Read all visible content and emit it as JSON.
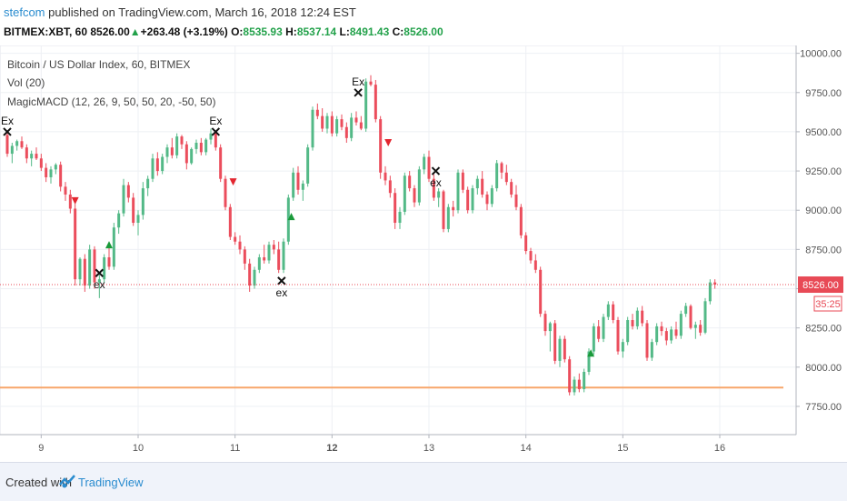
{
  "header": {
    "author": "stefcom",
    "published_text": " published on TradingView.com, March 16, 2018 12:24 EST",
    "symbol": "BITMEX:XBT, 60",
    "last": "8526.00",
    "change": "+263.48 (+3.19%)",
    "o_label": "O:",
    "o_value": "8535.93",
    "h_label": "H:",
    "h_value": "8537.14",
    "l_label": "L:",
    "l_value": "8491.43",
    "c_label": "C:",
    "c_value": "8526.00"
  },
  "legend": {
    "title": "Bitcoin / US Dollar Index, 60, BITMEX",
    "vol": "Vol (20)",
    "macd": "MagicMACD (12, 26, 9, 50, 50, 20, -50, 50)"
  },
  "footer": {
    "created": "Created with",
    "brand": "TradingView"
  },
  "colors": {
    "up": "#53b987",
    "down": "#eb4d5c",
    "support": "#f7a66a",
    "last_line": "#e84a56"
  },
  "chart_data": {
    "type": "candlestick",
    "x_ticks": [
      "9",
      "10",
      "11",
      "12",
      "13",
      "14",
      "15",
      "16"
    ],
    "x_tick_pos": [
      0.5,
      10.5,
      20.5,
      30.5,
      40.5,
      50.5,
      60.5,
      70.5
    ],
    "y_ticks": [
      "7750.00",
      "8000.00",
      "8250.00",
      "8500.00",
      "8750.00",
      "9000.00",
      "9250.00",
      "9500.00",
      "9750.00",
      "10000.00"
    ],
    "y_tick_vals": [
      7750,
      8000,
      8250,
      8500,
      8750,
      9000,
      9250,
      9500,
      9750,
      10000
    ],
    "ylim": [
      7570,
      10050
    ],
    "xlim": [
      -3,
      78
    ],
    "last_price": 8526,
    "last_price_label": "8526.00",
    "countdown": "35:25",
    "support_level": 7870,
    "candles": [
      [
        -3,
        9480,
        9500,
        9340,
        9360
      ],
      [
        -2.5,
        9360,
        9430,
        9300,
        9410
      ],
      [
        -2,
        9410,
        9450,
        9380,
        9440
      ],
      [
        -1.5,
        9440,
        9470,
        9390,
        9400
      ],
      [
        -1,
        9400,
        9420,
        9300,
        9330
      ],
      [
        -0.5,
        9330,
        9380,
        9280,
        9360
      ],
      [
        0,
        9360,
        9400,
        9320,
        9330
      ],
      [
        0.5,
        9330,
        9360,
        9250,
        9270
      ],
      [
        1,
        9270,
        9300,
        9180,
        9210
      ],
      [
        1.5,
        9210,
        9280,
        9170,
        9260
      ],
      [
        2,
        9260,
        9300,
        9230,
        9290
      ],
      [
        2.5,
        9290,
        9310,
        9120,
        9150
      ],
      [
        3,
        9150,
        9180,
        9060,
        9100
      ],
      [
        3.5,
        9100,
        9130,
        8980,
        9010
      ],
      [
        4,
        9010,
        9040,
        8520,
        8560
      ],
      [
        4.5,
        8560,
        8700,
        8520,
        8690
      ],
      [
        5,
        8690,
        8720,
        8480,
        8520
      ],
      [
        5.5,
        8520,
        8780,
        8500,
        8750
      ],
      [
        6,
        8750,
        8770,
        8500,
        8540
      ],
      [
        6.5,
        8540,
        8600,
        8440,
        8560
      ],
      [
        7,
        8560,
        8720,
        8540,
        8700
      ],
      [
        7.5,
        8700,
        8760,
        8620,
        8640
      ],
      [
        8,
        8640,
        8920,
        8620,
        8890
      ],
      [
        8.5,
        8890,
        9000,
        8850,
        8980
      ],
      [
        9,
        8980,
        9200,
        8960,
        9160
      ],
      [
        9.5,
        9160,
        9180,
        9050,
        9080
      ],
      [
        10,
        9080,
        9110,
        8900,
        8920
      ],
      [
        10.5,
        8920,
        9000,
        8840,
        8970
      ],
      [
        11,
        8970,
        9180,
        8940,
        9140
      ],
      [
        11.5,
        9140,
        9220,
        9090,
        9200
      ],
      [
        12,
        9200,
        9360,
        9180,
        9330
      ],
      [
        12.5,
        9330,
        9370,
        9220,
        9250
      ],
      [
        13,
        9250,
        9360,
        9230,
        9340
      ],
      [
        13.5,
        9340,
        9420,
        9300,
        9400
      ],
      [
        14,
        9400,
        9460,
        9330,
        9350
      ],
      [
        14.5,
        9350,
        9490,
        9330,
        9470
      ],
      [
        15,
        9470,
        9480,
        9390,
        9420
      ],
      [
        15.5,
        9420,
        9440,
        9260,
        9300
      ],
      [
        16,
        9300,
        9400,
        9290,
        9390
      ],
      [
        16.5,
        9390,
        9450,
        9360,
        9430
      ],
      [
        17,
        9430,
        9460,
        9350,
        9370
      ],
      [
        17.5,
        9370,
        9460,
        9350,
        9450
      ],
      [
        18,
        9450,
        9520,
        9420,
        9490
      ],
      [
        18.5,
        9490,
        9500,
        9380,
        9400
      ],
      [
        19,
        9400,
        9420,
        9180,
        9200
      ],
      [
        19.5,
        9200,
        9220,
        9000,
        9020
      ],
      [
        20,
        9020,
        9040,
        8810,
        8830
      ],
      [
        20.5,
        8830,
        8860,
        8780,
        8800
      ],
      [
        21,
        8800,
        8840,
        8720,
        8750
      ],
      [
        21.5,
        8750,
        8770,
        8620,
        8660
      ],
      [
        22,
        8660,
        8690,
        8480,
        8520
      ],
      [
        22.5,
        8520,
        8640,
        8500,
        8620
      ],
      [
        23,
        8620,
        8720,
        8600,
        8700
      ],
      [
        23.5,
        8700,
        8780,
        8660,
        8680
      ],
      [
        24,
        8680,
        8800,
        8660,
        8780
      ],
      [
        24.5,
        8780,
        8810,
        8720,
        8750
      ],
      [
        25,
        8750,
        8800,
        8600,
        8620
      ],
      [
        25.5,
        8620,
        8820,
        8600,
        8800
      ],
      [
        26,
        8800,
        9100,
        8780,
        9080
      ],
      [
        26.5,
        9080,
        9270,
        9060,
        9240
      ],
      [
        27,
        9240,
        9280,
        9100,
        9130
      ],
      [
        27.5,
        9130,
        9190,
        9060,
        9170
      ],
      [
        28,
        9170,
        9420,
        9150,
        9400
      ],
      [
        28.5,
        9400,
        9660,
        9380,
        9640
      ],
      [
        29,
        9640,
        9680,
        9580,
        9600
      ],
      [
        29.5,
        9600,
        9650,
        9500,
        9520
      ],
      [
        30,
        9520,
        9620,
        9490,
        9600
      ],
      [
        30.5,
        9600,
        9630,
        9470,
        9490
      ],
      [
        31,
        9490,
        9600,
        9470,
        9580
      ],
      [
        31.5,
        9580,
        9610,
        9510,
        9530
      ],
      [
        32,
        9530,
        9560,
        9430,
        9460
      ],
      [
        32.5,
        9460,
        9620,
        9440,
        9590
      ],
      [
        33,
        9590,
        9630,
        9540,
        9560
      ],
      [
        33.5,
        9560,
        9600,
        9510,
        9520
      ],
      [
        34,
        9520,
        9840,
        9500,
        9820
      ],
      [
        34.5,
        9820,
        9860,
        9790,
        9800
      ],
      [
        35,
        9800,
        9830,
        9560,
        9580
      ],
      [
        35.5,
        9580,
        9600,
        9200,
        9240
      ],
      [
        36,
        9240,
        9280,
        9160,
        9190
      ],
      [
        36.5,
        9190,
        9220,
        9080,
        9110
      ],
      [
        37,
        9110,
        9140,
        8880,
        8920
      ],
      [
        37.5,
        8920,
        9020,
        8880,
        8990
      ],
      [
        38,
        8990,
        9240,
        8970,
        9220
      ],
      [
        38.5,
        9220,
        9250,
        9120,
        9140
      ],
      [
        39,
        9140,
        9160,
        9020,
        9050
      ],
      [
        39.5,
        9050,
        9280,
        9030,
        9260
      ],
      [
        40,
        9260,
        9360,
        9230,
        9340
      ],
      [
        40.5,
        9340,
        9380,
        9180,
        9200
      ],
      [
        41,
        9200,
        9230,
        9060,
        9080
      ],
      [
        41.5,
        9080,
        9140,
        9020,
        9120
      ],
      [
        42,
        9120,
        9130,
        8860,
        8880
      ],
      [
        42.5,
        8880,
        9040,
        8860,
        9020
      ],
      [
        43,
        9020,
        9060,
        8960,
        9000
      ],
      [
        43.5,
        9000,
        9260,
        8980,
        9240
      ],
      [
        44,
        9240,
        9260,
        9110,
        9130
      ],
      [
        44.5,
        9130,
        9150,
        8980,
        9000
      ],
      [
        45,
        9000,
        9160,
        8980,
        9140
      ],
      [
        45.5,
        9140,
        9220,
        9100,
        9200
      ],
      [
        46,
        9200,
        9250,
        9080,
        9100
      ],
      [
        46.5,
        9100,
        9120,
        9000,
        9040
      ],
      [
        47,
        9040,
        9160,
        9020,
        9140
      ],
      [
        47.5,
        9140,
        9320,
        9120,
        9300
      ],
      [
        48,
        9300,
        9310,
        9200,
        9240
      ],
      [
        48.5,
        9240,
        9290,
        9160,
        9180
      ],
      [
        49,
        9180,
        9200,
        9080,
        9100
      ],
      [
        49.5,
        9100,
        9160,
        9000,
        9020
      ],
      [
        50,
        9020,
        9040,
        8820,
        8840
      ],
      [
        50.5,
        8840,
        8860,
        8720,
        8740
      ],
      [
        51,
        8740,
        8760,
        8660,
        8680
      ],
      [
        51.5,
        8680,
        8720,
        8600,
        8620
      ],
      [
        52,
        8620,
        8640,
        8320,
        8340
      ],
      [
        52.5,
        8340,
        8360,
        8200,
        8230
      ],
      [
        53,
        8230,
        8290,
        8100,
        8280
      ],
      [
        53.5,
        8280,
        8300,
        8020,
        8040
      ],
      [
        54,
        8040,
        8200,
        8000,
        8180
      ],
      [
        54.5,
        8180,
        8200,
        8030,
        8050
      ],
      [
        55,
        8050,
        8070,
        7820,
        7840
      ],
      [
        55.5,
        7840,
        7940,
        7820,
        7920
      ],
      [
        56,
        7920,
        7960,
        7840,
        7860
      ],
      [
        56.5,
        7860,
        7990,
        7840,
        7970
      ],
      [
        57,
        7970,
        8120,
        7950,
        8100
      ],
      [
        57.5,
        8100,
        8280,
        8080,
        8260
      ],
      [
        58,
        8260,
        8300,
        8160,
        8180
      ],
      [
        58.5,
        8180,
        8340,
        8160,
        8320
      ],
      [
        59,
        8320,
        8420,
        8300,
        8400
      ],
      [
        59.5,
        8400,
        8420,
        8280,
        8300
      ],
      [
        60,
        8300,
        8320,
        8080,
        8100
      ],
      [
        60.5,
        8100,
        8180,
        8060,
        8160
      ],
      [
        61,
        8160,
        8320,
        8140,
        8300
      ],
      [
        61.5,
        8300,
        8340,
        8240,
        8260
      ],
      [
        62,
        8260,
        8380,
        8240,
        8360
      ],
      [
        62.5,
        8360,
        8390,
        8260,
        8280
      ],
      [
        63,
        8280,
        8300,
        8040,
        8060
      ],
      [
        63.5,
        8060,
        8180,
        8040,
        8160
      ],
      [
        64,
        8160,
        8280,
        8140,
        8260
      ],
      [
        64.5,
        8260,
        8290,
        8200,
        8230
      ],
      [
        65,
        8230,
        8250,
        8140,
        8170
      ],
      [
        65.5,
        8170,
        8260,
        8150,
        8240
      ],
      [
        66,
        8240,
        8290,
        8180,
        8200
      ],
      [
        66.5,
        8200,
        8360,
        8180,
        8340
      ],
      [
        67,
        8340,
        8410,
        8320,
        8390
      ],
      [
        67.5,
        8390,
        8400,
        8240,
        8250
      ],
      [
        68,
        8250,
        8290,
        8180,
        8270
      ],
      [
        68.5,
        8270,
        8300,
        8200,
        8220
      ],
      [
        69,
        8220,
        8440,
        8210,
        8420
      ],
      [
        69.5,
        8420,
        8560,
        8400,
        8540
      ],
      [
        70,
        8540,
        8560,
        8500,
        8526
      ]
    ],
    "markers": [
      {
        "type": "exit-upper",
        "x": -3,
        "price": 9500,
        "label": "Ex"
      },
      {
        "type": "sell",
        "x": 4,
        "price": 9060
      },
      {
        "type": "exit-lower",
        "x": 6.5,
        "price": 8600,
        "label": "ex"
      },
      {
        "type": "buy",
        "x": 7.5,
        "price": 8780
      },
      {
        "type": "exit-upper",
        "x": 18.5,
        "price": 9500,
        "label": "Ex"
      },
      {
        "type": "sell",
        "x": 20.3,
        "price": 9180
      },
      {
        "type": "exit-lower",
        "x": 25.3,
        "price": 8550,
        "label": "ex"
      },
      {
        "type": "buy",
        "x": 26.3,
        "price": 8960
      },
      {
        "type": "exit-upper",
        "x": 33.2,
        "price": 9750,
        "label": "Ex"
      },
      {
        "type": "sell",
        "x": 36.3,
        "price": 9430
      },
      {
        "type": "exit-lower",
        "x": 41.2,
        "price": 9250,
        "label": "ex"
      },
      {
        "type": "buy",
        "x": 57.2,
        "price": 8090
      }
    ]
  }
}
